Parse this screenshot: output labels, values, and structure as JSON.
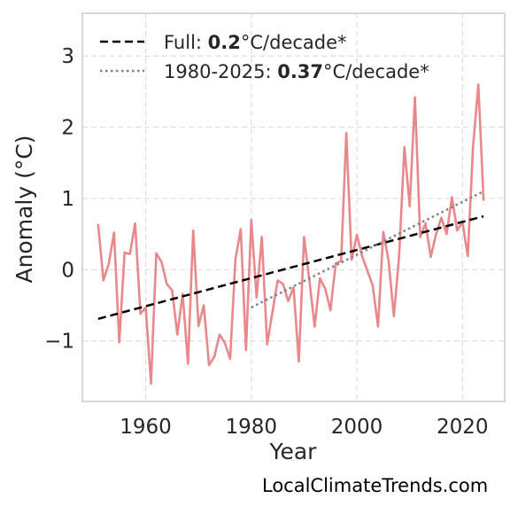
{
  "chart_data": {
    "type": "line",
    "xlabel": "Year",
    "ylabel": "Anomaly (°C)",
    "xlim": [
      1948,
      2028
    ],
    "ylim": [
      -1.85,
      3.6
    ],
    "x_ticks": [
      1960,
      1980,
      2000,
      2020
    ],
    "x_tick_labels": [
      "1960",
      "1980",
      "2000",
      "2020"
    ],
    "y_ticks": [
      -1,
      0,
      1,
      2,
      3
    ],
    "y_tick_labels": [
      "−1",
      "0",
      "1",
      "2",
      "3"
    ],
    "grid": true,
    "legend_position": "top-left",
    "series": [
      {
        "color": "#e8888b",
        "x": [
          1951,
          1952,
          1953,
          1954,
          1955,
          1956,
          1957,
          1958,
          1959,
          1960,
          1961,
          1962,
          1963,
          1964,
          1965,
          1966,
          1967,
          1968,
          1969,
          1970,
          1971,
          1972,
          1973,
          1974,
          1975,
          1976,
          1977,
          1978,
          1979,
          1980,
          1981,
          1982,
          1983,
          1984,
          1985,
          1986,
          1987,
          1988,
          1989,
          1990,
          1991,
          1992,
          1993,
          1994,
          1995,
          1996,
          1997,
          1998,
          1999,
          2000,
          2001,
          2002,
          2003,
          2004,
          2005,
          2006,
          2007,
          2008,
          2009,
          2010,
          2011,
          2012,
          2013,
          2014,
          2015,
          2016,
          2017,
          2018,
          2019,
          2020,
          2021,
          2022,
          2023,
          2024
        ],
        "y": [
          0.63,
          -0.15,
          0.08,
          0.52,
          -1.02,
          0.24,
          0.22,
          0.65,
          -0.62,
          -0.53,
          -1.6,
          0.23,
          0.11,
          -0.2,
          -0.29,
          -0.91,
          -0.34,
          -1.32,
          0.55,
          -0.79,
          -0.5,
          -1.34,
          -1.22,
          -0.91,
          -1.03,
          -1.25,
          0.15,
          0.57,
          -1.13,
          0.7,
          -0.39,
          0.46,
          -1.05,
          -0.6,
          -0.15,
          -0.2,
          -0.44,
          -0.25,
          -1.29,
          0.46,
          -0.15,
          -0.8,
          -0.12,
          -0.27,
          -0.57,
          0.09,
          0.12,
          1.92,
          0.14,
          0.49,
          0.19,
          -0.02,
          -0.22,
          -0.8,
          0.53,
          0.13,
          -0.65,
          0.2,
          1.72,
          0.89,
          2.42,
          0.46,
          0.65,
          0.18,
          0.5,
          0.73,
          0.5,
          1.02,
          0.55,
          0.67,
          0.19,
          1.72,
          2.6,
          0.98
        ]
      }
    ],
    "trends": [
      {
        "label_prefix": "Full: ",
        "label_value": "0.2",
        "label_suffix": "°C/decade*",
        "style": "dashed",
        "color": "#000000",
        "x": [
          1951,
          2024
        ],
        "y": [
          -0.69,
          0.75
        ]
      },
      {
        "label_prefix": "1980-2025: ",
        "label_value": "0.37",
        "label_suffix": "°C/decade*",
        "style": "dotted",
        "color": "#808080",
        "x": [
          1980,
          2024
        ],
        "y": [
          -0.53,
          1.1
        ]
      }
    ]
  },
  "watermark": "LocalClimateTrends.com"
}
